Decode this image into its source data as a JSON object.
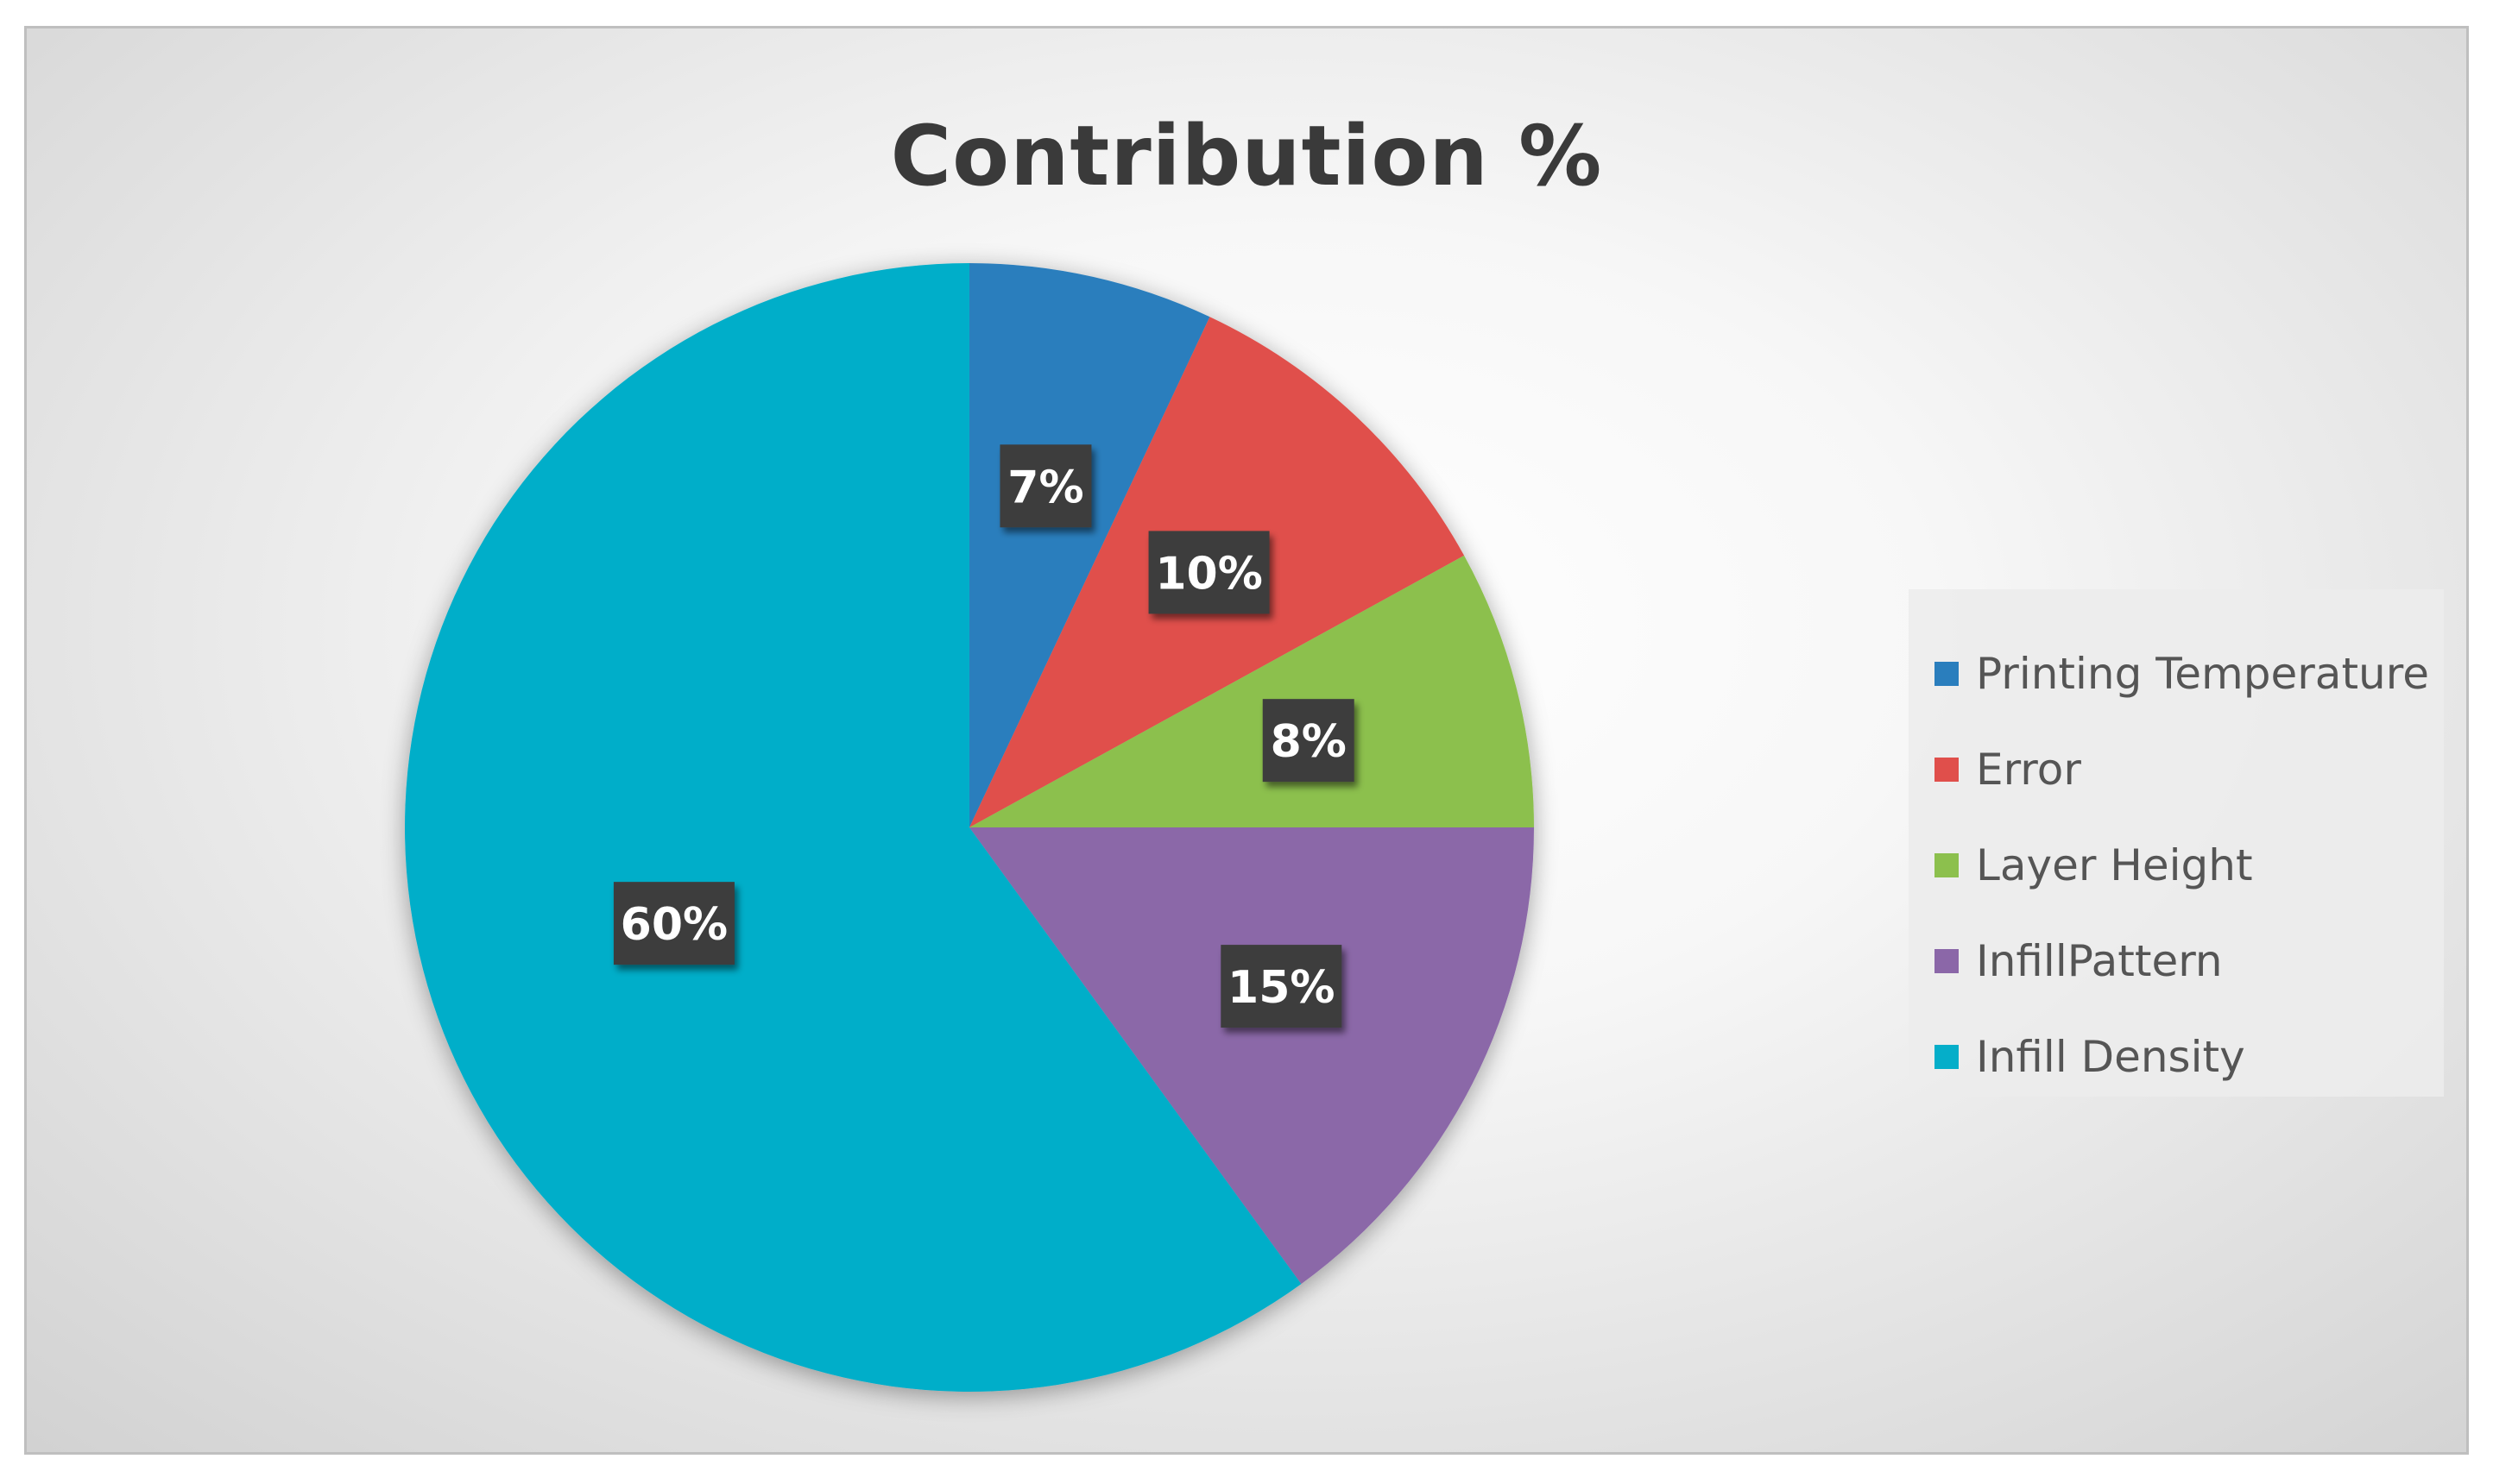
{
  "chart_data": {
    "type": "pie",
    "title": "Contribution %",
    "categories": [
      "Printing Temperature",
      "Error",
      "Layer Height",
      "InfillPattern",
      "Infill Density"
    ],
    "values": [
      7,
      10,
      8,
      15,
      60
    ],
    "data_labels": [
      "7%",
      "10%",
      "8%",
      "15%",
      "60%"
    ],
    "colors": [
      "#2a7ebd",
      "#e04f4b",
      "#8cc04d",
      "#8b67a8",
      "#05aec9"
    ],
    "start_angle_deg": 0,
    "direction": "clockwise",
    "legend_position": "right"
  }
}
